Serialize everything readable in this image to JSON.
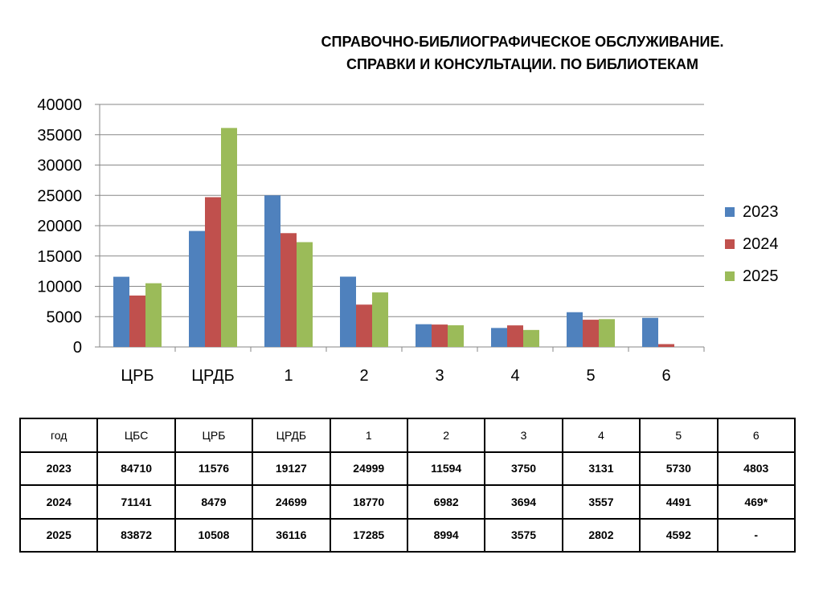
{
  "title_line1": "СПРАВОЧНО-БИБЛИОГРАФИЧЕСКОЕ ОБСЛУЖИВАНИЕ.",
  "title_line2": "СПРАВКИ И КОНСУЛЬТАЦИИ. ПО БИБЛИОТЕКАМ",
  "chart_data": {
    "type": "bar",
    "categories": [
      "ЦРБ",
      "ЦРДБ",
      "1",
      "2",
      "3",
      "4",
      "5",
      "6"
    ],
    "series": [
      {
        "name": "2023",
        "color": "#4F81BD",
        "values": [
          11576,
          19127,
          24999,
          11594,
          3750,
          3131,
          5730,
          4803
        ]
      },
      {
        "name": "2024",
        "color": "#C0504D",
        "values": [
          8479,
          24699,
          18770,
          6982,
          3694,
          3557,
          4491,
          469
        ]
      },
      {
        "name": "2025",
        "color": "#9BBB59",
        "values": [
          10508,
          36116,
          17285,
          8994,
          3575,
          2802,
          4592,
          null
        ]
      }
    ],
    "yticks": [
      "0",
      "5000",
      "10000",
      "15000",
      "20000",
      "25000",
      "30000",
      "35000",
      "40000"
    ],
    "ylim": [
      0,
      40000
    ],
    "grid": true,
    "legend_position": "right"
  },
  "table": {
    "header": [
      "год",
      "ЦБС",
      "ЦРБ",
      "ЦРДБ",
      "1",
      "2",
      "3",
      "4",
      "5",
      "6"
    ],
    "rows": [
      [
        "2023",
        "84710",
        "11576",
        "19127",
        "24999",
        "11594",
        "3750",
        "3131",
        "5730",
        "4803"
      ],
      [
        "2024",
        "71141",
        "8479",
        "24699",
        "18770",
        "6982",
        "3694",
        "3557",
        "4491",
        "469*"
      ],
      [
        "2025",
        "83872",
        "10508",
        "36116",
        "17285",
        "8994",
        "3575",
        "2802",
        "4592",
        "-"
      ]
    ]
  }
}
